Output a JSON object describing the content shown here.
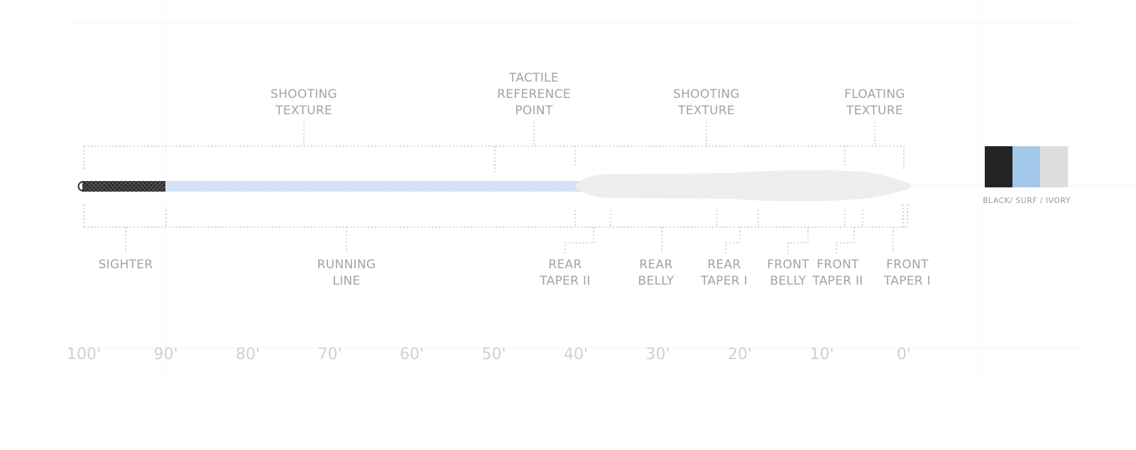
{
  "top_labels": [
    {
      "id": "shooting-texture-rear",
      "lines": [
        "SHOOTING",
        "TEXTURE"
      ]
    },
    {
      "id": "tactile-reference-point",
      "lines": [
        "TACTILE",
        "REFERENCE",
        "POINT"
      ]
    },
    {
      "id": "shooting-texture-front",
      "lines": [
        "SHOOTING",
        "TEXTURE"
      ]
    },
    {
      "id": "floating-texture",
      "lines": [
        "FLOATING",
        "TEXTURE"
      ]
    }
  ],
  "bottom_labels": [
    {
      "id": "sighter",
      "lines": [
        "SIGHTER"
      ]
    },
    {
      "id": "running-line",
      "lines": [
        "RUNNING",
        "LINE"
      ]
    },
    {
      "id": "rear-taper-ii",
      "lines": [
        "REAR",
        "TAPER II"
      ]
    },
    {
      "id": "rear-belly",
      "lines": [
        "REAR",
        "BELLY"
      ]
    },
    {
      "id": "rear-taper-i",
      "lines": [
        "REAR",
        "TAPER I"
      ]
    },
    {
      "id": "front-belly",
      "lines": [
        "FRONT",
        "BELLY"
      ]
    },
    {
      "id": "front-taper-ii",
      "lines": [
        "FRONT",
        "TAPER II"
      ]
    },
    {
      "id": "front-taper-i",
      "lines": [
        "FRONT",
        "TAPER I"
      ]
    }
  ],
  "scale": {
    "ticks": [
      "100'",
      "90'",
      "80'",
      "70'",
      "60'",
      "50'",
      "40'",
      "30'",
      "20'",
      "10'",
      "0'"
    ]
  },
  "swatches": {
    "caption": "BLACK/ SURF / IVORY",
    "colors": [
      {
        "name": "black",
        "hex": "#222423"
      },
      {
        "name": "surf",
        "hex": "#a2c8ea"
      },
      {
        "name": "ivory",
        "hex": "#dedddb"
      }
    ]
  },
  "line_colors": {
    "sighter": "#2b2b2b",
    "running_line": "#cfe1f6",
    "head": "#ececec"
  }
}
